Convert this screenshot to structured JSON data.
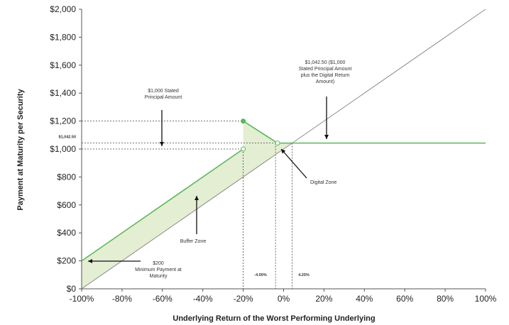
{
  "chart_data": {
    "type": "line",
    "xlabel": "Underlying Return of the Worst Performing Underlying",
    "ylabel": "Payment at Maturity per Security",
    "xlim": [
      -100,
      100
    ],
    "ylim": [
      0,
      2000
    ],
    "x_ticks": [
      "-100%",
      "-80%",
      "-60%",
      "-40%",
      "-20%",
      "0%",
      "20%",
      "40%",
      "60%",
      "80%",
      "100%"
    ],
    "y_ticks": [
      "$0",
      "$200",
      "$400",
      "$600",
      "$800",
      "$1,000",
      "$1,200",
      "$1,400",
      "$1,600",
      "$1,800",
      "$2,000"
    ],
    "grid": false,
    "series": [
      {
        "color": "#888888",
        "x": [
          -100,
          100
        ],
        "y": [
          0,
          2000
        ]
      },
      {
        "color": "#5cb85c",
        "x": [
          -100,
          -20
        ],
        "y": [
          200,
          1000
        ]
      },
      {
        "color": "#5cb85c",
        "x": [
          -20,
          -3,
          100
        ],
        "y": [
          1200,
          1042.5,
          1042.5
        ]
      }
    ],
    "annotations": {
      "stated_principal": [
        "$1,000 Stated",
        "Principal Amount"
      ],
      "digital_amount": [
        "$1,042.50 ($1,000",
        "Stated Principal Amount",
        "plus the Digital Return",
        "Amount)"
      ],
      "digital_zone": "Digital Zone",
      "buffer_zone": "Buffer Zone",
      "minimum_payment": [
        "$200",
        "Minimum Payment at",
        "Maturity"
      ],
      "neg_threshold": "-4.00%",
      "pos_threshold": "4.25%",
      "digital_level_label": "$1,042.50"
    }
  }
}
